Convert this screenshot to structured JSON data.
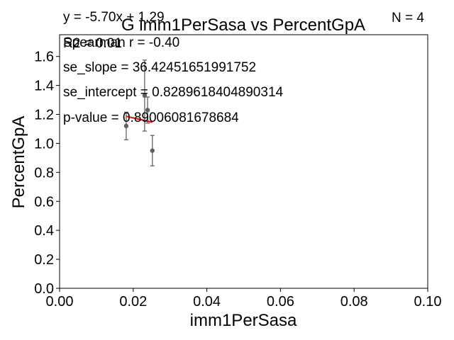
{
  "chart_data": {
    "type": "scatter",
    "title": "G imm1PerSasa vs PercentGpA",
    "xlabel": "imm1PerSasa",
    "ylabel": "PercentGpA",
    "xlim": [
      0.0,
      0.1
    ],
    "ylim": [
      0.0,
      1.75
    ],
    "xticks": [
      "0.00",
      "0.02",
      "0.04",
      "0.06",
      "0.08",
      "0.10"
    ],
    "yticks": [
      "0.0",
      "0.2",
      "0.4",
      "0.6",
      "0.8",
      "1.0",
      "1.2",
      "1.4",
      "1.6"
    ],
    "grid": false,
    "points": [
      {
        "x": 0.0181,
        "y": 1.12,
        "yerr": 0.095
      },
      {
        "x": 0.0231,
        "y": 1.33,
        "yerr": 0.245
      },
      {
        "x": 0.0239,
        "y": 1.23,
        "yerr": 0.09
      },
      {
        "x": 0.0252,
        "y": 0.95,
        "yerr": 0.105
      }
    ],
    "fit_line": {
      "slope": -5.7,
      "intercept": 1.29,
      "x_range": [
        0.0181,
        0.0252
      ]
    },
    "colors": {
      "points": "#606060",
      "fit": "#ff0000",
      "axes": "#000000"
    },
    "annotations": {
      "equation": "y = -5.70x + 1.29",
      "r2": "R2 = 0.01",
      "n": "N = 4",
      "spearman": "Spearman r = -0.40",
      "se_slope": "se_slope = 36.42451651991752",
      "se_intercept": "se_intercept = 0.8289618404890314",
      "p_value": "p-value = 0.89006081678684"
    }
  }
}
